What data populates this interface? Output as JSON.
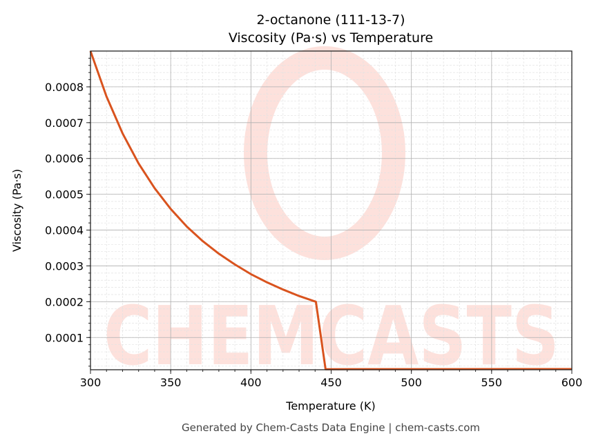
{
  "chart_data": {
    "type": "line",
    "title_line1": "2-octanone (111-13-7)",
    "title_line2": "Viscosity (Pa·s) vs Temperature",
    "xlabel": "Temperature (K)",
    "ylabel": "Viscosity (Pa·s)",
    "xlim": [
      300,
      600
    ],
    "ylim": [
      1e-05,
      0.0009
    ],
    "xticks": [
      300,
      350,
      400,
      450,
      500,
      550,
      600
    ],
    "xtick_labels": [
      "300",
      "350",
      "400",
      "450",
      "500",
      "550",
      "600"
    ],
    "yticks": [
      0.0001,
      0.0002,
      0.0003,
      0.0004,
      0.0005,
      0.0006,
      0.0007,
      0.0008
    ],
    "ytick_labels": [
      "0.0001",
      "0.0002",
      "0.0003",
      "0.0004",
      "0.0005",
      "0.0006",
      "0.0007",
      "0.0008"
    ],
    "grid": true,
    "series": [
      {
        "name": "Viscosity",
        "color": "#d9531e",
        "x": [
          300,
          310,
          320,
          330,
          340,
          350,
          360,
          370,
          380,
          390,
          400,
          410,
          420,
          430,
          440.5,
          446.5,
          600
        ],
        "y": [
          0.0009,
          0.000773,
          0.00067,
          0.000586,
          0.000517,
          0.000459,
          0.00041,
          0.000369,
          0.000334,
          0.000304,
          0.000277,
          0.000254,
          0.000234,
          0.000216,
          0.0002,
          1.15e-05,
          1.2e-05
        ]
      }
    ],
    "watermark": "CHEMCASTS",
    "footer": "Generated by Chem-Casts Data Engine | chem-casts.com"
  }
}
